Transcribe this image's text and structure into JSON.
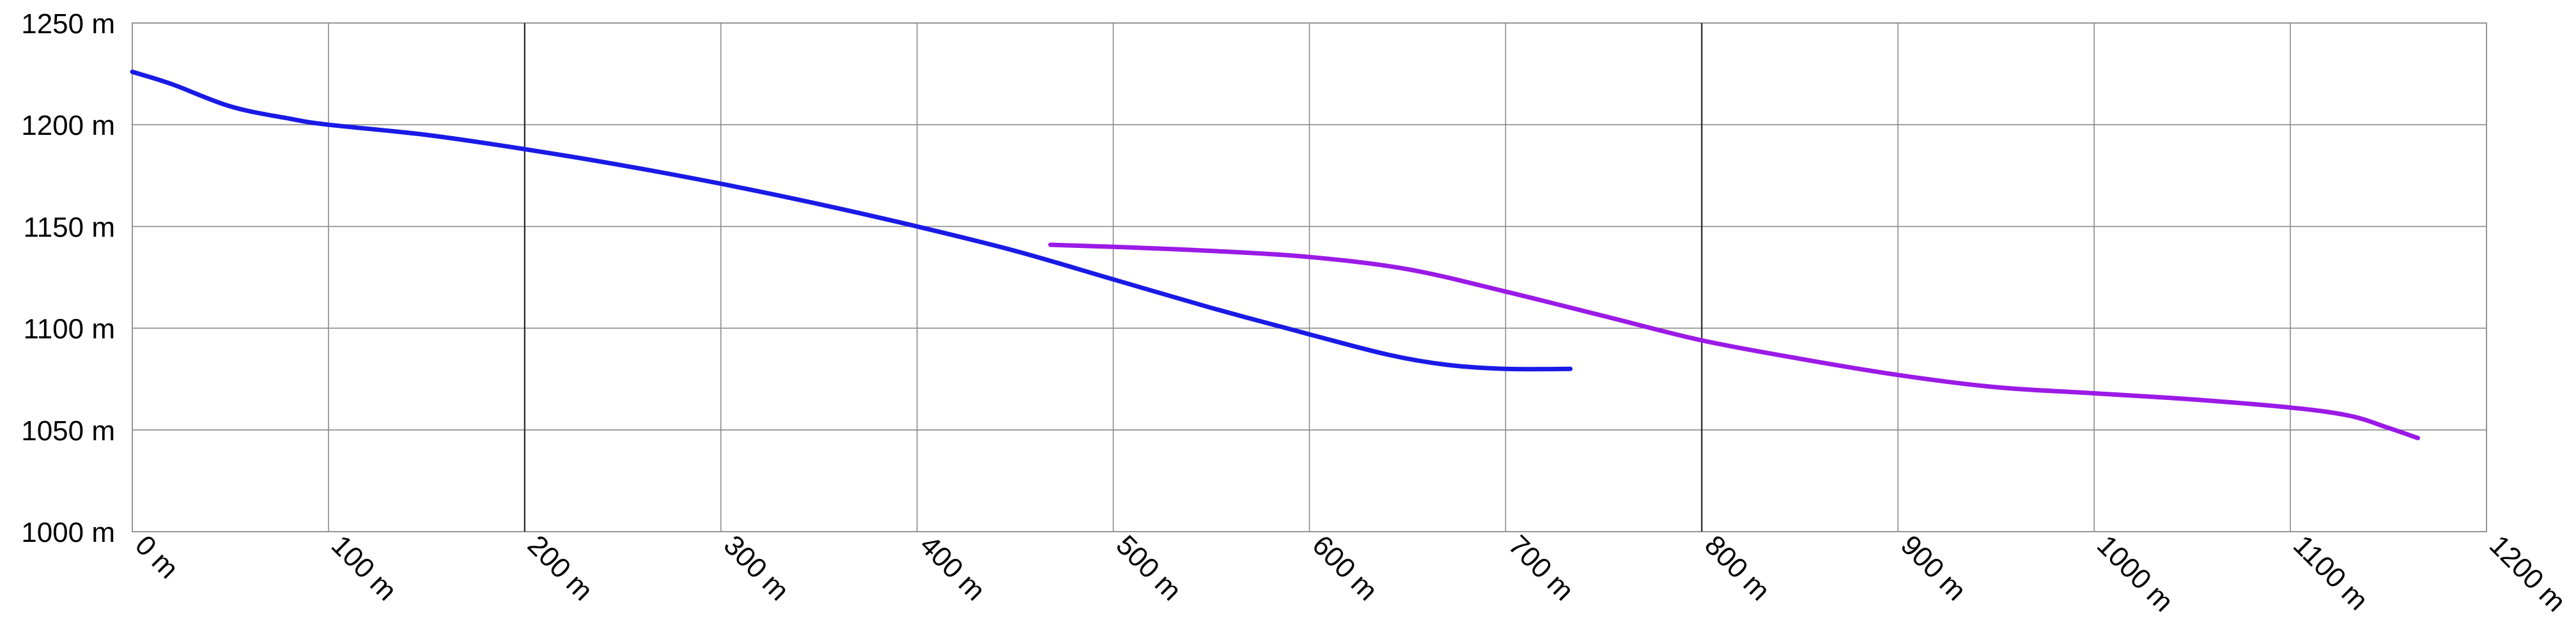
{
  "chart_data": {
    "type": "line",
    "title": "",
    "xlabel": "",
    "ylabel": "",
    "xlim": [
      0,
      1200
    ],
    "ylim": [
      1000,
      1250
    ],
    "x_ticks": [
      0,
      100,
      200,
      300,
      400,
      500,
      600,
      700,
      800,
      900,
      1000,
      1100,
      1200
    ],
    "x_tick_labels": [
      "0 m",
      "100 m",
      "200 m",
      "300 m",
      "400 m",
      "500 m",
      "600 m",
      "700 m",
      "800 m",
      "900 m",
      "1000 m",
      "1100 m",
      "1200 m"
    ],
    "y_ticks": [
      1000,
      1050,
      1100,
      1150,
      1200,
      1250
    ],
    "y_tick_labels": [
      "1000 m",
      "1050 m",
      "1100 m",
      "1150 m",
      "1200 m",
      "1250 m"
    ],
    "major_x_gridlines": [
      200,
      800
    ],
    "grid": true,
    "legend": "none",
    "series": [
      {
        "color": "#1a1ae6",
        "points": [
          [
            0,
            1226
          ],
          [
            20,
            1220
          ],
          [
            50,
            1209
          ],
          [
            80,
            1203
          ],
          [
            100,
            1200
          ],
          [
            150,
            1195
          ],
          [
            200,
            1188
          ],
          [
            250,
            1180
          ],
          [
            300,
            1171
          ],
          [
            350,
            1161
          ],
          [
            400,
            1150
          ],
          [
            450,
            1138
          ],
          [
            500,
            1124
          ],
          [
            550,
            1110
          ],
          [
            600,
            1097
          ],
          [
            640,
            1087
          ],
          [
            670,
            1082
          ],
          [
            700,
            1080
          ],
          [
            733,
            1080
          ]
        ]
      },
      {
        "color": "#9b1ae6",
        "points": [
          [
            468,
            1141
          ],
          [
            500,
            1140
          ],
          [
            550,
            1138
          ],
          [
            600,
            1135
          ],
          [
            650,
            1129
          ],
          [
            700,
            1118
          ],
          [
            750,
            1106
          ],
          [
            800,
            1094
          ],
          [
            850,
            1085
          ],
          [
            900,
            1077
          ],
          [
            950,
            1071
          ],
          [
            1000,
            1068
          ],
          [
            1050,
            1065
          ],
          [
            1100,
            1061
          ],
          [
            1130,
            1057
          ],
          [
            1150,
            1051
          ],
          [
            1165,
            1046
          ]
        ]
      }
    ]
  }
}
